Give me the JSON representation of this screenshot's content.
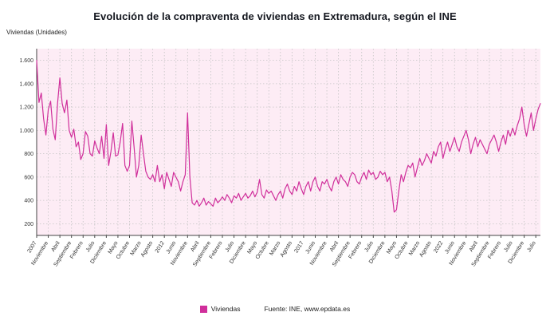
{
  "title": "Evolución de la compraventa de viviendas en Extremadura, según el INE",
  "y_axis_title": "Viviendas (Unidades)",
  "legend": {
    "series_label": "Viviendas",
    "source": "Fuente: INE, www.epdata.es"
  },
  "colors": {
    "line": "#d02f9b",
    "plot_bg": "#fdecf5",
    "grid": "#c4c4c4",
    "axis": "#444444",
    "tick_text": "#333333"
  },
  "chart_data": {
    "type": "line",
    "title": "Evolución de la compraventa de viviendas en Extremadura, según el INE",
    "xlabel": "",
    "ylabel": "Viviendas (Unidades)",
    "x_unit": "mes",
    "grid": "dotted",
    "legend_position": "bottom",
    "ylim": [
      100,
      1700
    ],
    "y_ticks": [
      200,
      400,
      600,
      800,
      1000,
      1200,
      1400,
      1600
    ],
    "y_tick_labels": [
      "200",
      "400",
      "600",
      "800",
      "1.000",
      "1.200",
      "1.400",
      "1.600"
    ],
    "x_tick_interval_points": 5,
    "x_tick_labels": [
      "2007",
      "Noviembre",
      "Abril",
      "Septiembre",
      "Febrero",
      "Julio",
      "Diciembre",
      "Mayo",
      "Octubre",
      "Marzo",
      "Agosto",
      "2012",
      "Junio",
      "Noviembre",
      "Abril",
      "Septiembre",
      "Febrero",
      "Julio",
      "Diciembre",
      "Mayo",
      "Octubre",
      "Marzo",
      "Agosto",
      "2017",
      "Junio",
      "Noviembre",
      "Abril",
      "Septiembre",
      "Febrero",
      "Julio",
      "Diciembre",
      "Mayo",
      "Octubre",
      "Marzo",
      "Agosto",
      "2022",
      "Junio",
      "Noviembre",
      "Abril",
      "Septiembre",
      "Febrero",
      "Julio",
      "Diciembre",
      "Julio"
    ],
    "series": [
      {
        "name": "Viviendas",
        "values": [
          1600,
          1240,
          1320,
          1100,
          960,
          1180,
          1250,
          1010,
          920,
          1230,
          1450,
          1230,
          1150,
          1260,
          1000,
          940,
          1010,
          860,
          900,
          750,
          800,
          990,
          950,
          800,
          780,
          910,
          850,
          800,
          950,
          760,
          1050,
          700,
          820,
          980,
          780,
          790,
          900,
          1060,
          700,
          650,
          700,
          1080,
          850,
          600,
          700,
          960,
          800,
          650,
          600,
          580,
          620,
          560,
          700,
          560,
          620,
          500,
          640,
          580,
          520,
          640,
          600,
          560,
          480,
          560,
          620,
          1150,
          600,
          380,
          360,
          400,
          350,
          380,
          420,
          360,
          390,
          370,
          350,
          420,
          380,
          400,
          430,
          400,
          450,
          420,
          380,
          440,
          420,
          460,
          400,
          430,
          460,
          420,
          440,
          480,
          430,
          470,
          580,
          450,
          420,
          490,
          460,
          480,
          440,
          400,
          450,
          480,
          420,
          500,
          540,
          480,
          450,
          520,
          480,
          560,
          500,
          450,
          520,
          560,
          480,
          560,
          600,
          520,
          480,
          560,
          540,
          580,
          520,
          480,
          560,
          600,
          540,
          620,
          580,
          560,
          520,
          600,
          640,
          620,
          560,
          540,
          600,
          640,
          580,
          660,
          620,
          640,
          580,
          600,
          650,
          620,
          640,
          560,
          600,
          480,
          300,
          320,
          480,
          620,
          560,
          640,
          700,
          680,
          720,
          600,
          680,
          760,
          700,
          740,
          800,
          760,
          720,
          820,
          780,
          860,
          900,
          760,
          840,
          900,
          820,
          880,
          940,
          860,
          820,
          900,
          950,
          1000,
          920,
          800,
          880,
          940,
          860,
          920,
          880,
          840,
          800,
          880,
          920,
          960,
          900,
          820,
          900,
          960,
          880,
          1000,
          950,
          1020,
          960,
          1040,
          1100,
          1200,
          1050,
          950,
          1050,
          1150,
          1000,
          1100,
          1180,
          1230
        ]
      }
    ]
  }
}
